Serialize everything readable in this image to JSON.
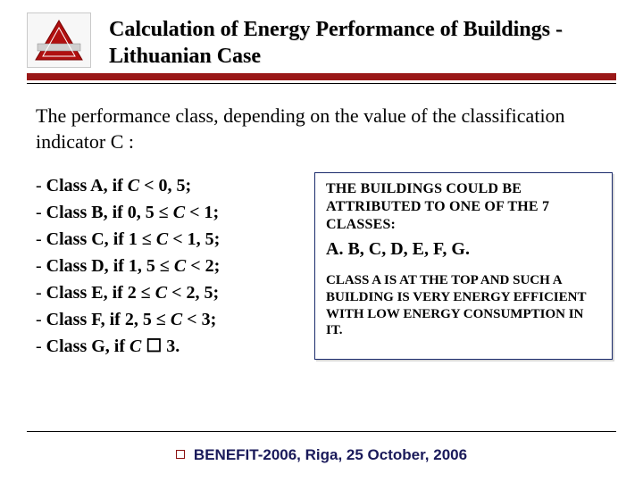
{
  "header": {
    "title": "Calculation of Energy Performance of Buildings - Lithuanian Case",
    "underline_bar_color": "#9a1818",
    "underline_line_color": "#000000"
  },
  "logo": {
    "bg": "#f7f7f7",
    "border": "#c9c9c9",
    "triangle_fill": "#b01010",
    "band_fill": "#d0d0d0"
  },
  "intro": "The performance class, depending on the value of the classification indicator C :",
  "classes": [
    {
      "label": "Class A",
      "cond_prefix": "if ",
      "expr": "C < 0, 5;"
    },
    {
      "label": "Class B",
      "cond_prefix": "if ",
      "expr": "0, 5 ≤ C < 1;"
    },
    {
      "label": "Class C",
      "cond_prefix": "if ",
      "expr": "1 ≤ C < 1, 5;"
    },
    {
      "label": "Class D",
      "cond_prefix": "if ",
      "expr": "1, 5 ≤ C < 2;"
    },
    {
      "label": "Class E",
      "cond_prefix": "if ",
      "expr": "2 ≤ C < 2, 5;"
    },
    {
      "label": "Class F",
      "cond_prefix": "if ",
      "expr": "2, 5 ≤ C < 3;"
    },
    {
      "label": "Class G",
      "cond_prefix": "if ",
      "expr": "C ☐ 3."
    }
  ],
  "box": {
    "border_color": "#1a2a6b",
    "p1": "THE BUILDINGS COULD BE ATTRIBUTED TO ONE OF THE 7 CLASSES:",
    "p2": "A. B, C, D, E, F, G.",
    "p3": "CLASS A IS AT THE TOP AND SUCH A BUILDING IS VERY ENERGY EFFICIENT WITH LOW ENERGY CONSUMPTION IN IT."
  },
  "footer": {
    "text": "BENEFIT-2006, Riga, 25 October, 2006",
    "bullet_border": "#8a0f0f",
    "text_color": "#1a1a5a"
  }
}
